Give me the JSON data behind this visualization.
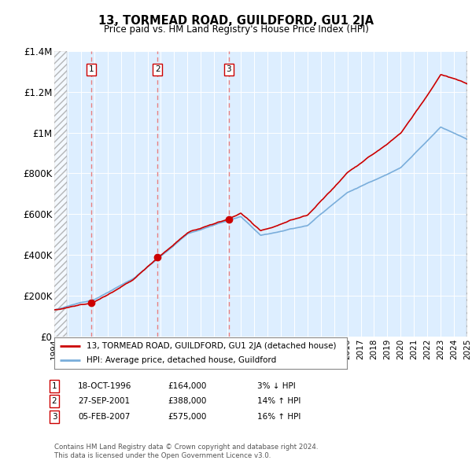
{
  "title": "13, TORMEAD ROAD, GUILDFORD, GU1 2JA",
  "subtitle": "Price paid vs. HM Land Registry's House Price Index (HPI)",
  "ylim": [
    0,
    1400000
  ],
  "yticks": [
    0,
    200000,
    400000,
    600000,
    800000,
    1000000,
    1200000,
    1400000
  ],
  "ytick_labels": [
    "£0",
    "£200K",
    "£400K",
    "£600K",
    "£800K",
    "£1M",
    "£1.2M",
    "£1.4M"
  ],
  "sale_years_float": [
    1996.789,
    2001.747,
    2007.097
  ],
  "sale_prices": [
    164000,
    388000,
    575000
  ],
  "sale_labels": [
    "1",
    "2",
    "3"
  ],
  "sale_info": [
    {
      "num": "1",
      "date": "18-OCT-1996",
      "price": "£164,000",
      "hpi": "3% ↓ HPI"
    },
    {
      "num": "2",
      "date": "27-SEP-2001",
      "price": "£388,000",
      "hpi": "14% ↑ HPI"
    },
    {
      "num": "3",
      "date": "05-FEB-2007",
      "price": "£575,000",
      "hpi": "16% ↑ HPI"
    }
  ],
  "line_color_red": "#cc0000",
  "line_color_blue": "#7aaedb",
  "dashed_color": "#e88080",
  "marker_color": "#cc0000",
  "legend1": "13, TORMEAD ROAD, GUILDFORD, GU1 2JA (detached house)",
  "legend2": "HPI: Average price, detached house, Guildford",
  "footnote1": "Contains HM Land Registry data © Crown copyright and database right 2024.",
  "footnote2": "This data is licensed under the Open Government Licence v3.0.",
  "bg_color": "#ffffff",
  "plot_bg_color": "#ddeeff",
  "xstart": 1994,
  "xend": 2025
}
